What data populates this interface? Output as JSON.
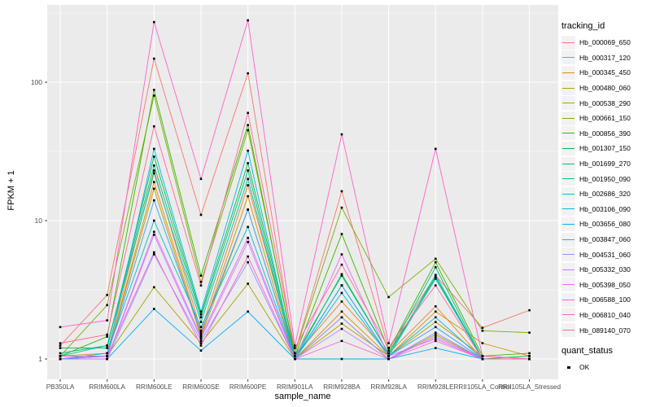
{
  "chart_data": {
    "type": "line",
    "title": "",
    "xlabel": "sample_name",
    "ylabel": "FPKM + 1",
    "x_categories": [
      "PB350LA",
      "RRIM600LA",
      "RRIM600LE",
      "RRIM600SE",
      "RRIM600PE",
      "RRIM901LA",
      "RRIM928BA",
      "RRIM928LA",
      "RRIM928LE",
      "RRII105LA_Control",
      "RRII105LA_Stressed"
    ],
    "y_scale": "log10",
    "y_ticks": [
      1,
      10,
      100
    ],
    "y_minor_ticks": [
      3.162,
      31.62,
      316.2
    ],
    "ylim": [
      0.72,
      362
    ],
    "grid": true,
    "legend_position": "right",
    "legend_title": "tracking_id",
    "point_shape": "filled-square",
    "point_color": "#000000",
    "panel_background": "#EBEBEB",
    "grid_color": "#FFFFFF",
    "series": [
      {
        "name": "Hb_000069_650",
        "color": "#F8766D",
        "values": [
          1.25,
          2.9,
          148,
          11,
          116,
          1.1,
          16.3,
          1.2,
          4.0,
          1.68,
          2.25
        ]
      },
      {
        "name": "Hb_000317_120",
        "color": "#EA8331",
        "values": [
          1.05,
          1.1,
          23,
          1.6,
          18,
          1.05,
          2.6,
          1.1,
          2.4,
          1.0,
          1.0
        ]
      },
      {
        "name": "Hb_000345_450",
        "color": "#D89000",
        "values": [
          1.05,
          1.05,
          19,
          1.5,
          15,
          1.0,
          2.2,
          1.05,
          2.2,
          1.3,
          1.05
        ]
      },
      {
        "name": "Hb_000480_060",
        "color": "#C09B00",
        "values": [
          1.0,
          1.05,
          17,
          1.45,
          12,
          1.0,
          1.8,
          1.05,
          1.85,
          1.05,
          1.0
        ]
      },
      {
        "name": "Hb_000538_290",
        "color": "#A3A500",
        "values": [
          1.0,
          1.05,
          3.3,
          1.3,
          3.5,
          1.0,
          2.0,
          1.0,
          1.5,
          1.0,
          1.0
        ]
      },
      {
        "name": "Hb_000661_150",
        "color": "#7CAE00",
        "values": [
          1.05,
          2.45,
          80,
          3.6,
          45,
          1.1,
          12.4,
          2.8,
          5.3,
          1.6,
          1.55
        ]
      },
      {
        "name": "Hb_000856_390",
        "color": "#39B600",
        "values": [
          1.05,
          1.45,
          88,
          4.0,
          49,
          1.05,
          8.0,
          1.15,
          5.0,
          1.05,
          1.1
        ]
      },
      {
        "name": "Hb_001307_150",
        "color": "#00BB4E",
        "values": [
          1.2,
          1.2,
          29,
          2.1,
          26,
          1.05,
          4.0,
          1.1,
          3.9,
          1.0,
          1.05
        ]
      },
      {
        "name": "Hb_001699_270",
        "color": "#00BF7D",
        "values": [
          1.1,
          1.25,
          25,
          2.0,
          23,
          1.0,
          4.1,
          1.1,
          4.6,
          1.0,
          1.0
        ]
      },
      {
        "name": "Hb_001950_090",
        "color": "#00C1A3",
        "values": [
          1.05,
          1.25,
          22,
          1.85,
          20,
          1.0,
          3.4,
          1.05,
          4.05,
          1.0,
          1.0
        ]
      },
      {
        "name": "Hb_002686_320",
        "color": "#00BFC4",
        "values": [
          1.0,
          1.1,
          10,
          1.7,
          9,
          1.0,
          3.0,
          1.05,
          3.8,
          1.0,
          1.0
        ]
      },
      {
        "name": "Hb_003106_090",
        "color": "#00BAE0",
        "values": [
          1.0,
          1.05,
          33,
          2.2,
          32,
          1.0,
          3.4,
          1.05,
          2.0,
          1.0,
          1.0
        ]
      },
      {
        "name": "Hb_003656_080",
        "color": "#00B0F6",
        "values": [
          1.0,
          1.0,
          2.3,
          1.15,
          2.2,
          1.0,
          1.0,
          1.0,
          1.2,
          1.0,
          1.0
        ]
      },
      {
        "name": "Hb_003847_060",
        "color": "#35A2FF",
        "values": [
          1.0,
          1.05,
          14,
          1.55,
          12,
          1.0,
          3.4,
          1.05,
          1.7,
          1.0,
          1.0
        ]
      },
      {
        "name": "Hb_004531_060",
        "color": "#9590FF",
        "values": [
          1.0,
          1.0,
          5.7,
          1.35,
          5.0,
          1.0,
          2.0,
          1.0,
          1.55,
          1.0,
          1.0
        ]
      },
      {
        "name": "Hb_005332_030",
        "color": "#C77CFF",
        "values": [
          1.0,
          1.0,
          7.9,
          1.4,
          7.0,
          1.0,
          1.65,
          1.0,
          1.45,
          1.0,
          1.0
        ]
      },
      {
        "name": "Hb_005398_050",
        "color": "#E76BF3",
        "values": [
          1.0,
          1.0,
          8.3,
          1.45,
          7.5,
          1.0,
          5.7,
          1.05,
          1.4,
          1.0,
          1.0
        ]
      },
      {
        "name": "Hb_006588_100",
        "color": "#FA62DB",
        "values": [
          1.05,
          1.05,
          5.9,
          1.25,
          5.5,
          1.0,
          1.35,
          1.0,
          1.35,
          1.0,
          1.0
        ]
      },
      {
        "name": "Hb_006810_040",
        "color": "#FF61CC",
        "values": [
          1.7,
          1.9,
          272,
          20,
          280,
          1.25,
          42,
          1.3,
          33,
          1.05,
          1.0
        ]
      },
      {
        "name": "Hb_089140_070",
        "color": "#FF6A98",
        "values": [
          1.3,
          1.5,
          48,
          3.4,
          60,
          1.2,
          4.8,
          1.2,
          3.4,
          1.0,
          1.0
        ]
      }
    ],
    "quant_legend": {
      "title": "quant_status",
      "items": [
        {
          "label": "OK",
          "shape": "filled-square",
          "color": "#000000"
        }
      ]
    }
  }
}
